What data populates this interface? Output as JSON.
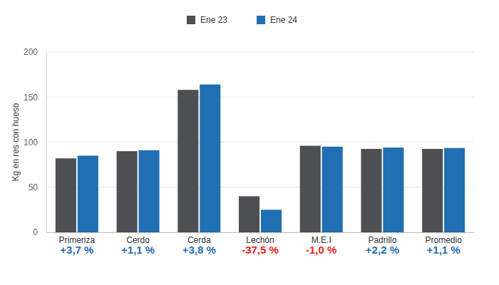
{
  "chart_data": {
    "type": "bar",
    "y_label": "Kg en res con hueso",
    "categories": [
      "Primeriza",
      "Cerdo",
      "Cerda",
      "Lechón",
      "M.E.I",
      "Padrillo",
      "Promedio"
    ],
    "series": [
      {
        "name": "Ene 23",
        "color": "#4d4f53",
        "values": [
          82,
          90,
          158,
          40,
          96,
          92.5,
          92.5
        ]
      },
      {
        "name": "Ene 24",
        "color": "#1f6fb2",
        "values": [
          85,
          91,
          164,
          25,
          95,
          94,
          93.5
        ]
      }
    ],
    "annotations": [
      {
        "text": "+3,7 %",
        "color": "#1f6fb2"
      },
      {
        "text": "+1,1 %",
        "color": "#1f6fb2"
      },
      {
        "text": "+3,8 %",
        "color": "#1f6fb2"
      },
      {
        "text": "-37,5 %",
        "color": "#e8231f"
      },
      {
        "text": "-1,0 %",
        "color": "#e8231f"
      },
      {
        "text": "+2,2 %",
        "color": "#1f6fb2"
      },
      {
        "text": "+1,1 %",
        "color": "#1f6fb2"
      }
    ],
    "ylim": [
      0,
      200
    ],
    "yticks": [
      0,
      50,
      100,
      150,
      200
    ],
    "grid": true,
    "legend": "top"
  }
}
